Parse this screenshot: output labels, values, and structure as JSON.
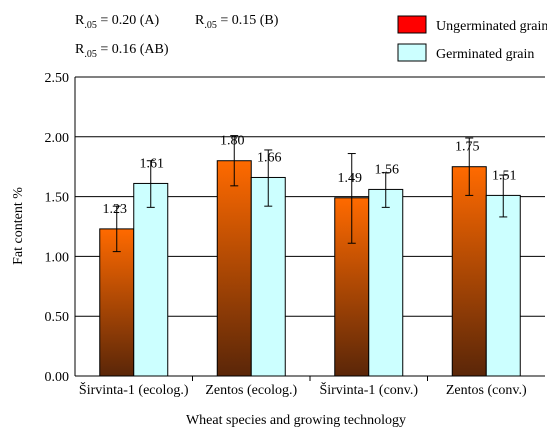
{
  "chart_data": {
    "type": "bar",
    "categories": [
      "Širvinta-1 (ecolog.)",
      "Zentos (ecolog.)",
      "Širvinta-1 (conv.)",
      "Zentos (conv.)"
    ],
    "series": [
      {
        "name": "Ungerminated grain",
        "values": [
          1.23,
          1.8,
          1.49,
          1.75
        ],
        "value_labels": [
          "1.23",
          "1.80",
          "1.49",
          "1.75"
        ],
        "error_low": [
          1.04,
          1.59,
          1.11,
          1.51
        ],
        "error_high": [
          1.42,
          2.01,
          1.86,
          1.99
        ],
        "color_top": "#ff6a00",
        "color_bottom": "#5a2608"
      },
      {
        "name": "Germinated grain",
        "values": [
          1.61,
          1.66,
          1.56,
          1.51
        ],
        "value_labels": [
          "1.61",
          "1.66",
          "1.56",
          "1.51"
        ],
        "error_low": [
          1.41,
          1.42,
          1.41,
          1.33
        ],
        "error_high": [
          1.8,
          1.89,
          1.7,
          1.68
        ],
        "color": "#ccffff"
      }
    ],
    "xlabel": "Wheat species and growing technology",
    "ylabel": "Fat content  %",
    "ylim": [
      0,
      2.5
    ],
    "yticks": [
      "0.00",
      "0.50",
      "1.00",
      "1.50",
      "2.00",
      "2.50"
    ],
    "grid": true,
    "legend_position": "top-right",
    "annotations": {
      "rA": {
        "main": "R",
        "sub": ".05",
        "text": " = 0.20 (A)"
      },
      "rB": {
        "main": "R",
        "sub": ".05",
        "text": " = 0.15 (B)"
      },
      "rAB": {
        "main": "R",
        "sub": ".05",
        "text": " = 0.16 (AB)"
      }
    }
  }
}
